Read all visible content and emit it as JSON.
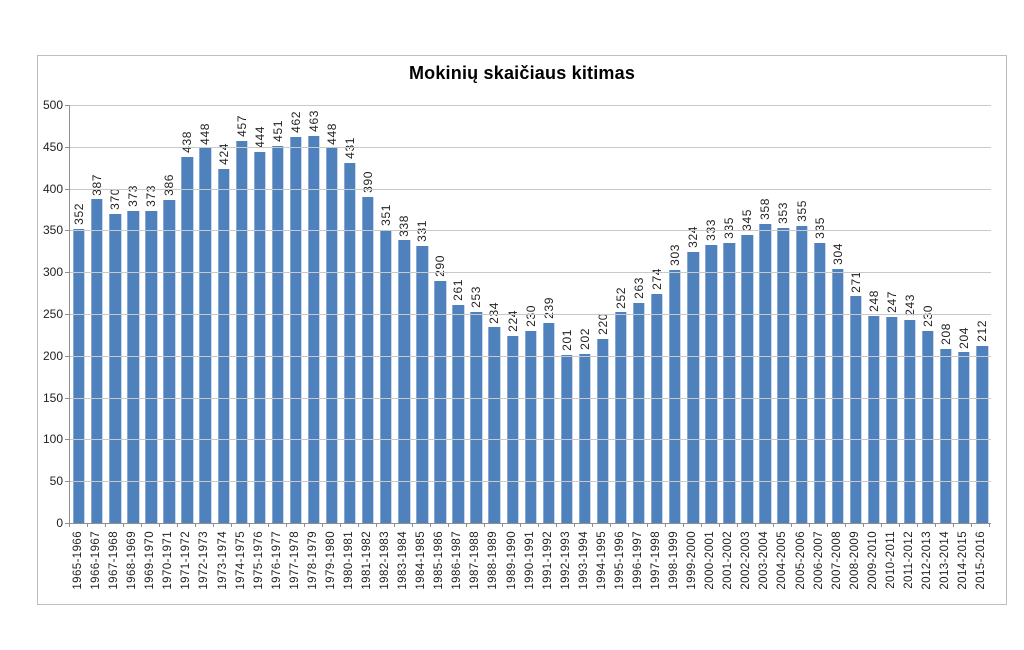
{
  "chart_data": {
    "type": "bar",
    "title": "Mokinių skaičiaus kitimas",
    "xlabel": "",
    "ylabel": "",
    "ylim": [
      0,
      500
    ],
    "yticks": [
      0,
      50,
      100,
      150,
      200,
      250,
      300,
      350,
      400,
      450,
      500
    ],
    "grid": true,
    "legend": false,
    "data_labels": "rotated-vertical-above-bars",
    "categories": [
      "1965-1966",
      "1966-1967",
      "1967-1968",
      "1968-1969",
      "1969-1970",
      "1970-1971",
      "1971-1972",
      "1972-1973",
      "1973-1974",
      "1974-1975",
      "1975-1976",
      "1976-1977",
      "1977-1978",
      "1978-1979",
      "1979-1980",
      "1980-1981",
      "1981-1982",
      "1982-1983",
      "1983-1984",
      "1984-1985",
      "1985-1986",
      "1986-1987",
      "1987-1988",
      "1988-1989",
      "1989-1990",
      "1990-1991",
      "1991-1992",
      "1992-1993",
      "1993-1994",
      "1994-1995",
      "1995-1996",
      "1996-1997",
      "1997-1998",
      "1998-1999",
      "1999-2000",
      "2000-2001",
      "2001-2002",
      "2002-2003",
      "2003-2004",
      "2004-2005",
      "2005-2006",
      "2006-2007",
      "2007-2008",
      "2008-2009",
      "2009-2010",
      "2010-2011",
      "2011-2012",
      "2012-2013",
      "2013-2014",
      "2014-2015",
      "2015-2016"
    ],
    "values": [
      352,
      387,
      370,
      373,
      373,
      386,
      438,
      448,
      424,
      457,
      444,
      451,
      462,
      463,
      448,
      431,
      390,
      351,
      338,
      331,
      290,
      261,
      253,
      234,
      224,
      230,
      239,
      201,
      202,
      220,
      252,
      263,
      274,
      303,
      324,
      333,
      335,
      345,
      358,
      353,
      355,
      335,
      304,
      271,
      248,
      247,
      243,
      230,
      208,
      204,
      212
    ],
    "colors": {
      "bar": "#4f81bd",
      "gridline": "#c9c9c9",
      "axis": "#8f8f8f",
      "frame_border": "#bdbdbd",
      "label_text": "#1f1f1f",
      "title_text": "#000000"
    }
  }
}
